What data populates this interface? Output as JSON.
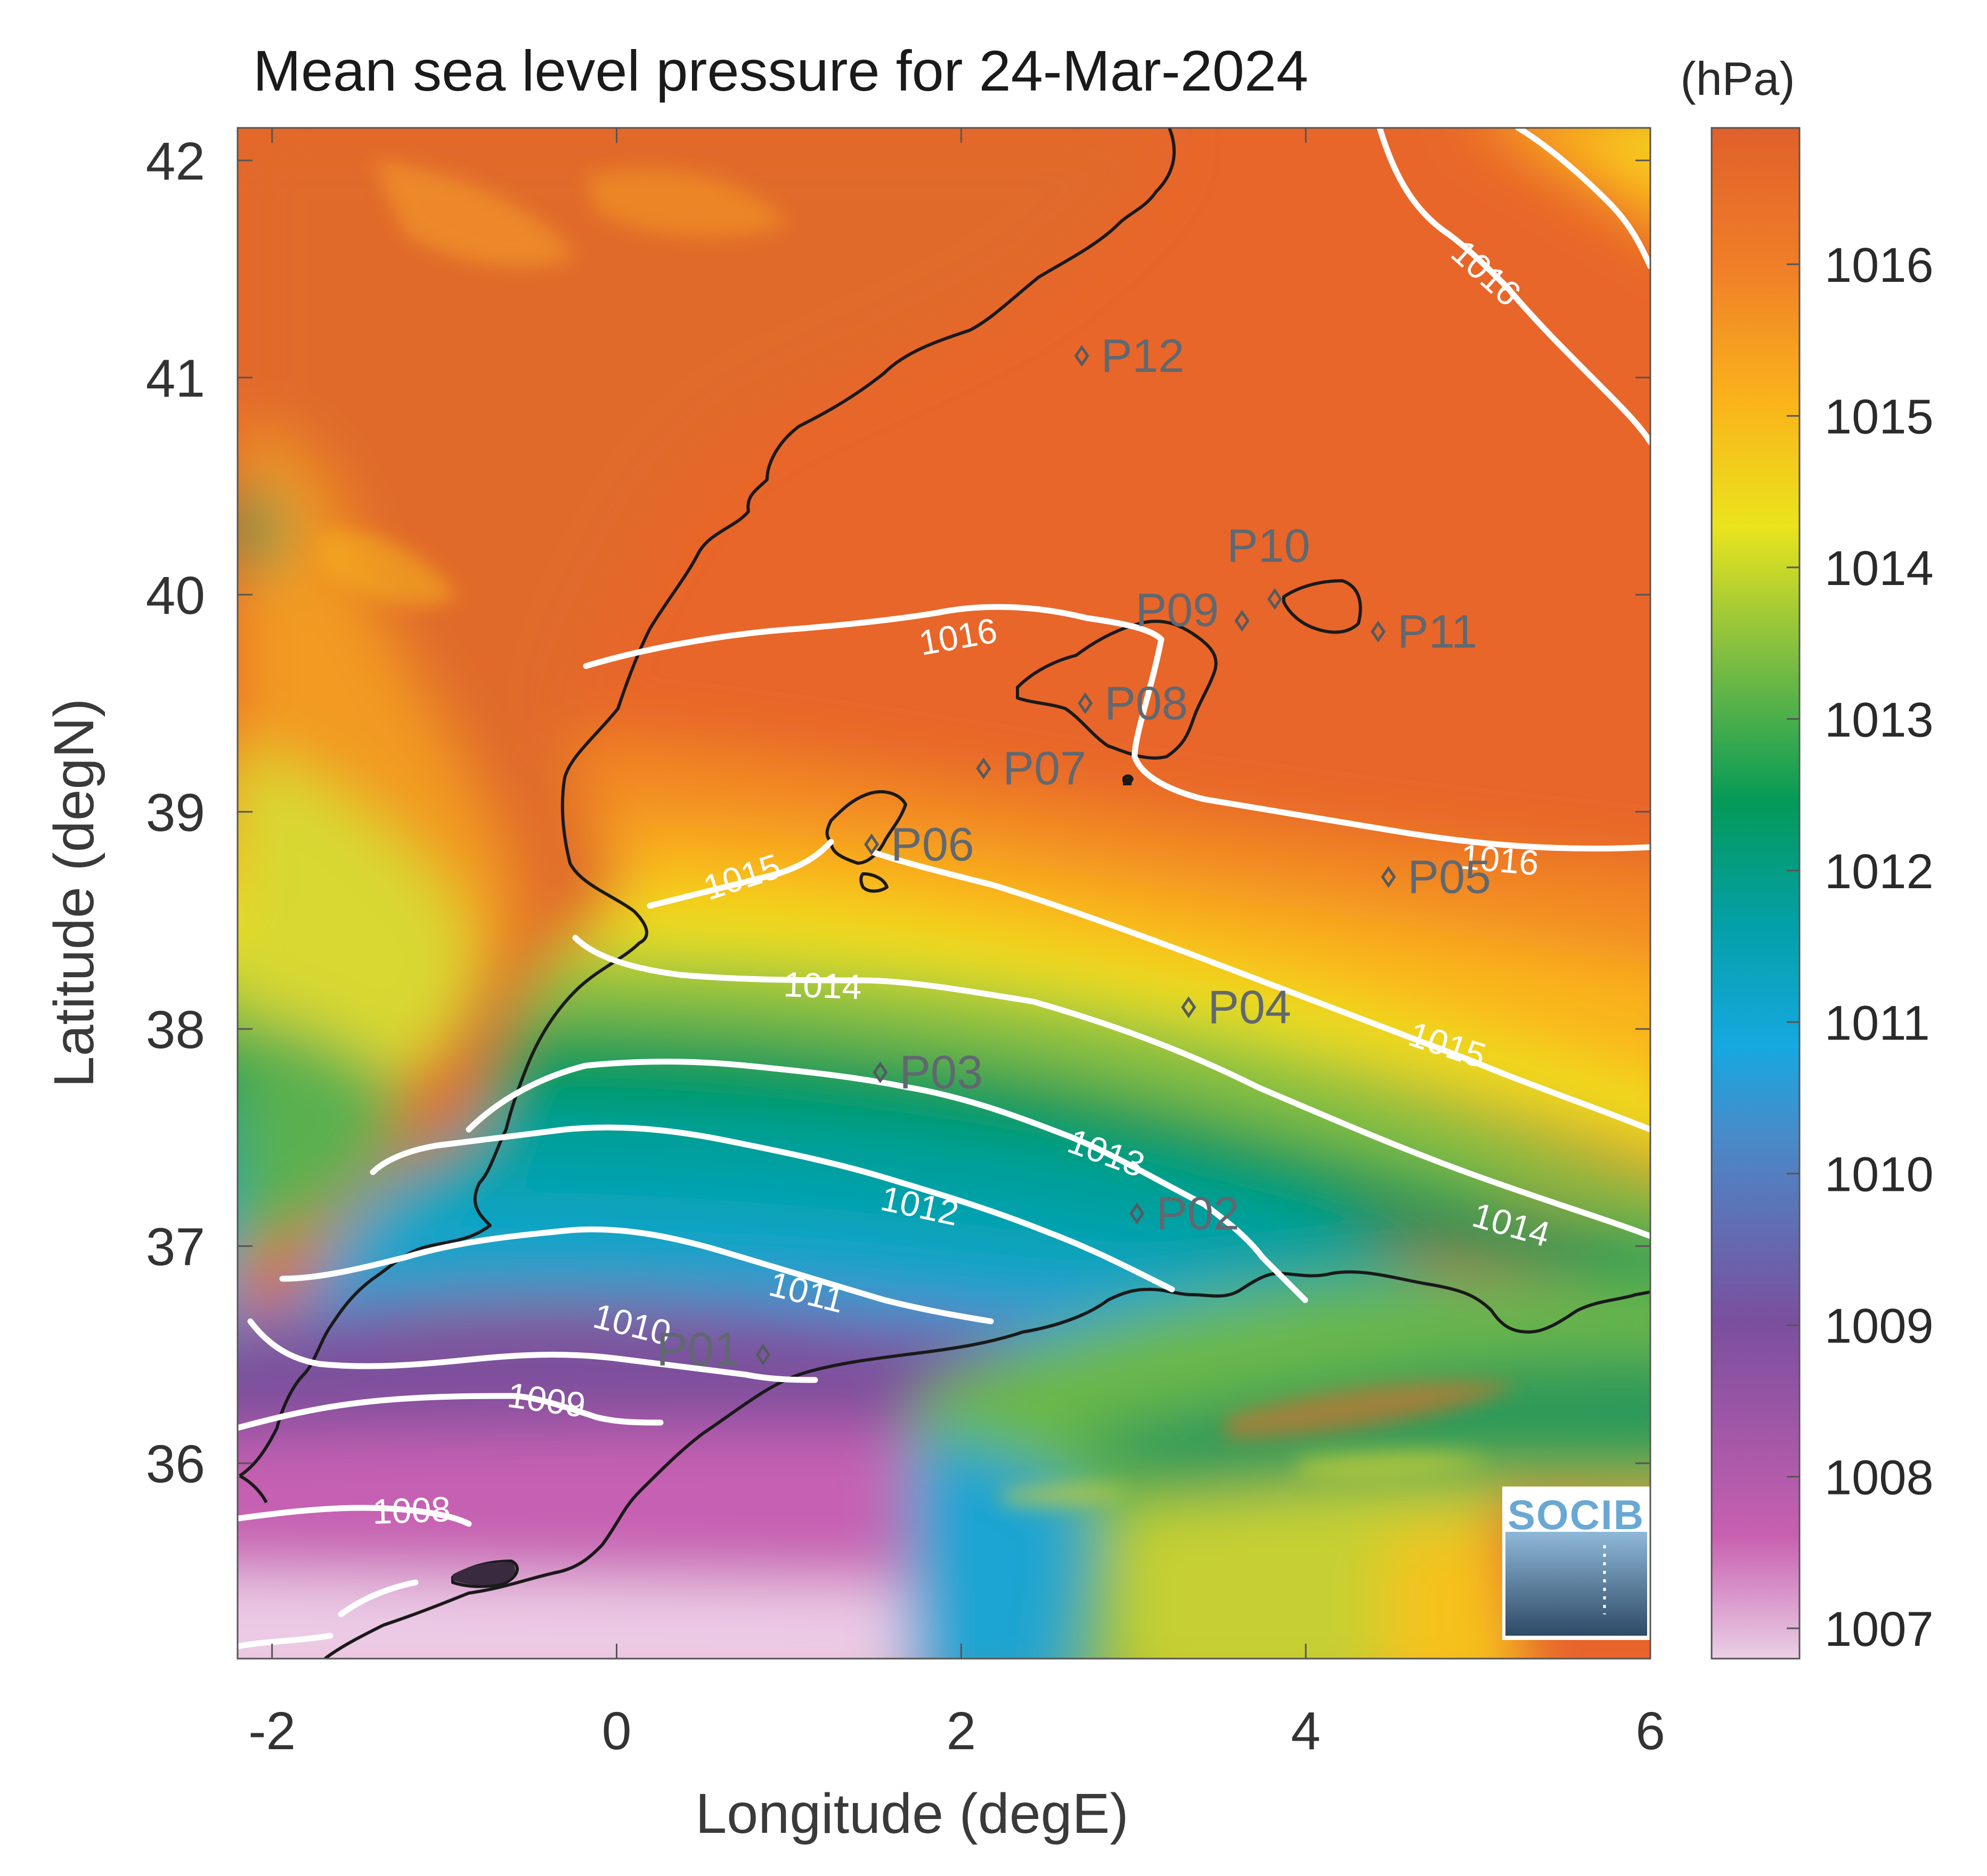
{
  "title": "Mean sea level pressure for 24-Mar-2024",
  "colorbar": {
    "unit": "(hPa)",
    "range": [
      1006.8,
      1016.9
    ],
    "ticks": [
      1007,
      1008,
      1009,
      1010,
      1011,
      1012,
      1013,
      1014,
      1015,
      1016
    ],
    "tick_labels": [
      "1007",
      "1008",
      "1009",
      "1010",
      "1011",
      "1012",
      "1013",
      "1014",
      "1015",
      "1016"
    ],
    "colormap": [
      "#ead0e6",
      "#c860b0",
      "#7a4f9e",
      "#2aa6dc",
      "#04a0a8",
      "#049a58",
      "#86c040",
      "#f2e21a",
      "#fab41a",
      "#f07e28",
      "#e0602a"
    ]
  },
  "axes": {
    "xlabel": "Longitude (degE)",
    "ylabel": "Latitude (degN)",
    "xlim": [
      -2.2,
      6.0
    ],
    "ylim": [
      35.1,
      42.15
    ],
    "xticks": [
      -2,
      0,
      2,
      4,
      6
    ],
    "xtick_labels": [
      "-2",
      "0",
      "2",
      "4",
      "6"
    ],
    "yticks": [
      36,
      37,
      38,
      39,
      40,
      41,
      42
    ],
    "ytick_labels": [
      "36",
      "37",
      "38",
      "39",
      "40",
      "41",
      "42"
    ]
  },
  "stations": [
    {
      "id": "P01",
      "lon": 0.85,
      "lat": 36.5
    },
    {
      "id": "P02",
      "lon": 3.02,
      "lat": 37.15
    },
    {
      "id": "P03",
      "lon": 1.53,
      "lat": 37.8
    },
    {
      "id": "P04",
      "lon": 3.32,
      "lat": 38.1
    },
    {
      "id": "P05",
      "lon": 4.48,
      "lat": 38.7
    },
    {
      "id": "P06",
      "lon": 1.48,
      "lat": 38.85
    },
    {
      "id": "P07",
      "lon": 2.13,
      "lat": 39.2
    },
    {
      "id": "P08",
      "lon": 2.72,
      "lat": 39.5
    },
    {
      "id": "P09",
      "lon": 3.63,
      "lat": 39.88
    },
    {
      "id": "P10",
      "lon": 3.82,
      "lat": 39.98
    },
    {
      "id": "P11",
      "lon": 4.42,
      "lat": 39.83
    },
    {
      "id": "P12",
      "lon": 2.7,
      "lat": 41.1
    }
  ],
  "contour_labels": [
    "1016",
    "1016",
    "1016",
    "1015",
    "1015",
    "1014",
    "1014",
    "1013",
    "1012",
    "1011",
    "1010",
    "1009",
    "1008"
  ],
  "logo": {
    "text": "SOCIB"
  }
}
